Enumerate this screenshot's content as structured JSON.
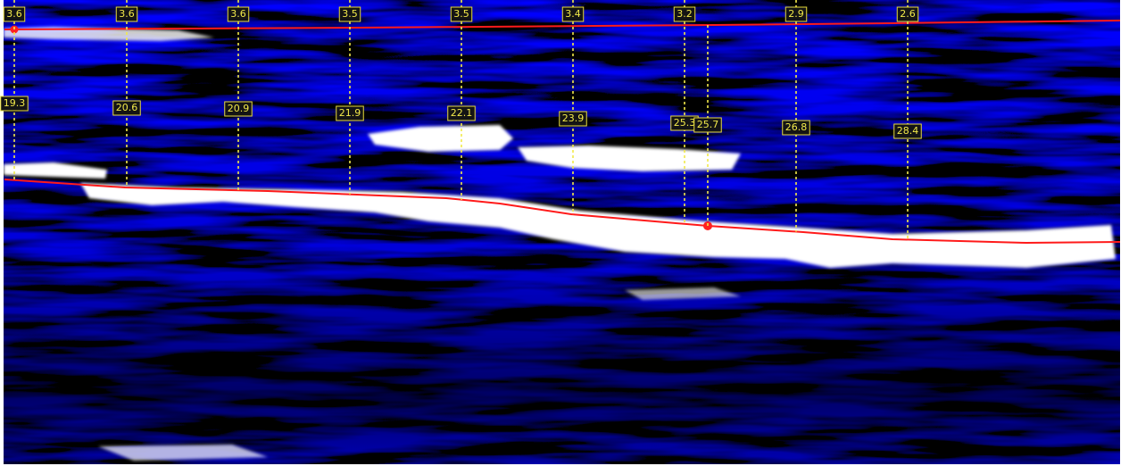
{
  "markers": [
    {
      "top": "3.6",
      "depth": "19.3"
    },
    {
      "top": "3.6",
      "depth": "20.6"
    },
    {
      "top": "3.6",
      "depth": "20.9"
    },
    {
      "top": "3.5",
      "depth": "21.9"
    },
    {
      "top": "3.5",
      "depth": "22.1"
    },
    {
      "top": "3.4",
      "depth": "23.9"
    },
    {
      "top": "3.2",
      "depth": "25.3"
    },
    {
      "depth": "25.7"
    },
    {
      "top": "2.9",
      "depth": "26.8"
    },
    {
      "top": "2.6",
      "depth": "28.4"
    }
  ]
}
